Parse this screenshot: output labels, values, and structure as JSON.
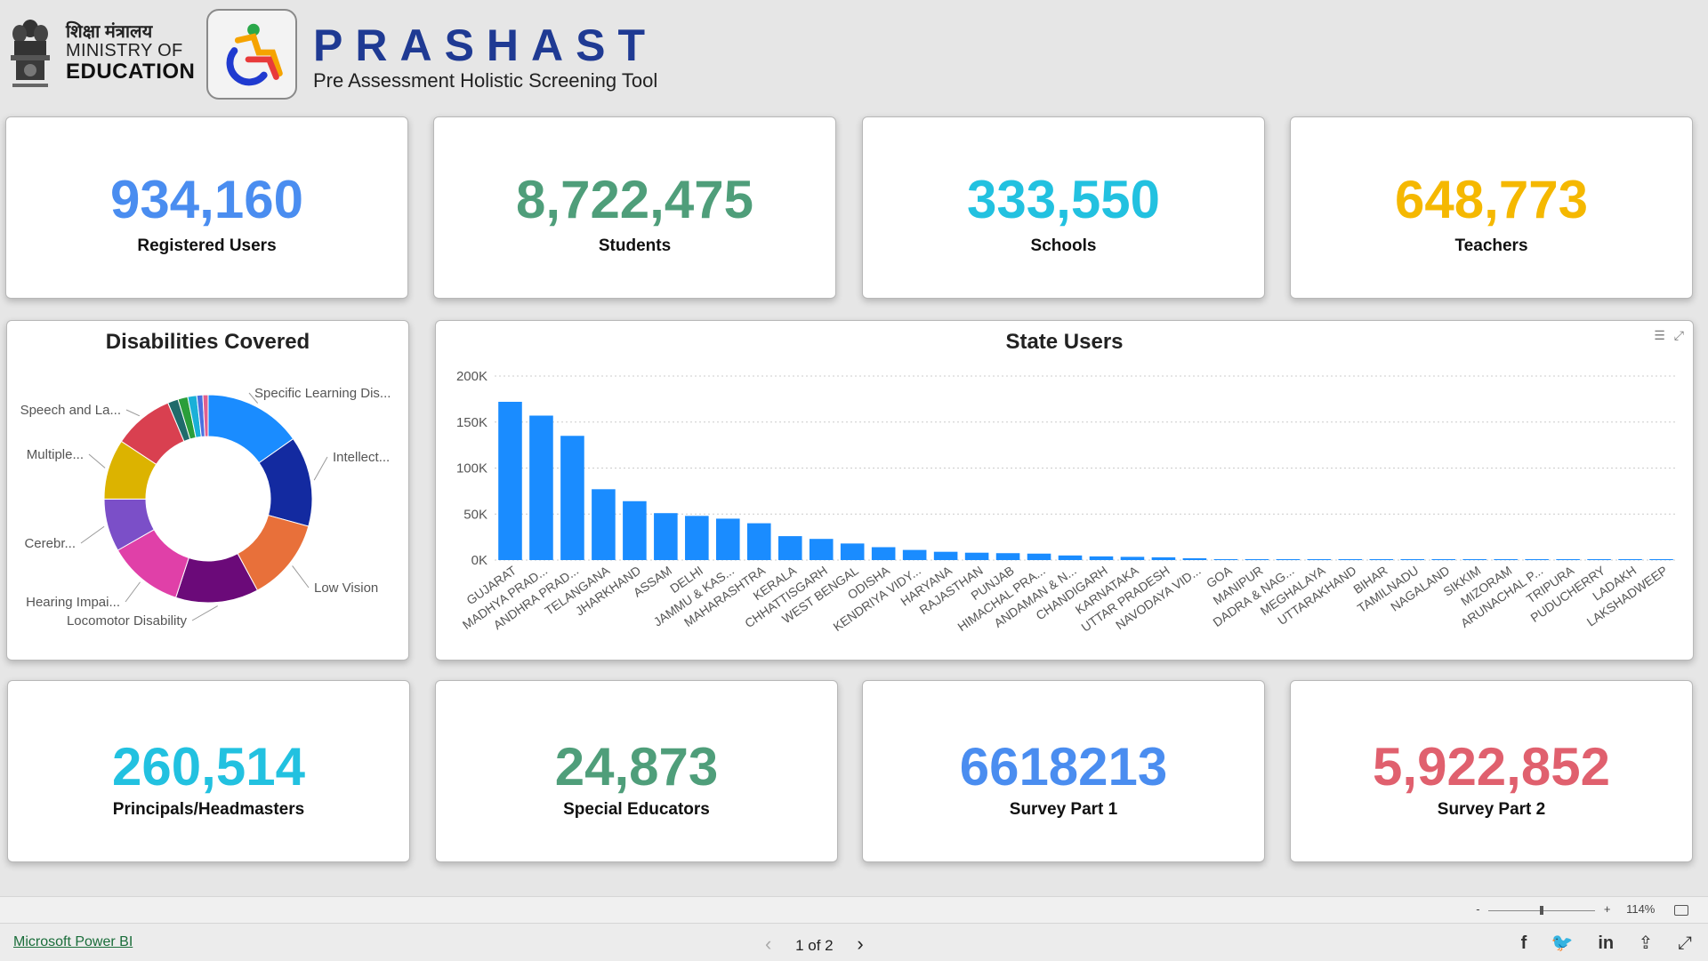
{
  "header": {
    "ministry_hindi": "शिक्षा मंत्रालय",
    "ministry_line1": "MINISTRY OF",
    "ministry_line2": "EDUCATION",
    "app_title": "PRASHAST",
    "app_subtitle": "Pre Assessment Holistic Screening Tool"
  },
  "kpis_top": [
    {
      "value": "934,160",
      "label": "Registered Users",
      "color": "#4a8df0"
    },
    {
      "value": "8,722,475",
      "label": "Students",
      "color": "#4f9e7a"
    },
    {
      "value": "333,550",
      "label": "Schools",
      "color": "#22c1e0"
    },
    {
      "value": "648,773",
      "label": "Teachers",
      "color": "#f5b800"
    }
  ],
  "kpis_bottom": [
    {
      "value": "260,514",
      "label": "Principals/Headmasters",
      "color": "#22c1e0"
    },
    {
      "value": "24,873",
      "label": "Special Educators",
      "color": "#4f9e7a"
    },
    {
      "value": "6618213",
      "label": "Survey Part 1",
      "color": "#4a8df0"
    },
    {
      "value": "5,922,852",
      "label": "Survey Part 2",
      "color": "#e0606e"
    }
  ],
  "donut": {
    "title": "Disabilities Covered",
    "slices": [
      {
        "label": "Specific Learning Dis...",
        "value": 13,
        "color": "#1a8cff"
      },
      {
        "label": "Intellect...",
        "value": 12,
        "color": "#132aa0"
      },
      {
        "label": "Low Vision",
        "value": 11,
        "color": "#e8703a"
      },
      {
        "label": "Locomotor Disability",
        "value": 11,
        "color": "#6b0a79"
      },
      {
        "label": "Hearing Impai...",
        "value": 10,
        "color": "#e040a8"
      },
      {
        "label": "Cerebr...",
        "value": 7,
        "color": "#7b4fc8"
      },
      {
        "label": "Multiple...",
        "value": 8,
        "color": "#dcb300"
      },
      {
        "label": "Speech and La...",
        "value": 8,
        "color": "#d94050"
      },
      {
        "label": "",
        "value": 1.4,
        "color": "#1f6b6b"
      },
      {
        "label": "",
        "value": 1.3,
        "color": "#2a9e3a"
      },
      {
        "label": "",
        "value": 1.2,
        "color": "#1ab0d8"
      },
      {
        "label": "",
        "value": 0.8,
        "color": "#4a70e0"
      },
      {
        "label": "",
        "value": 0.7,
        "color": "#e06090"
      }
    ]
  },
  "chart_data": {
    "type": "bar",
    "title": "State Users",
    "categories": [
      "GUJARAT",
      "MADHYA PRAD...",
      "ANDHRA PRAD...",
      "TELANGANA",
      "JHARKHAND",
      "ASSAM",
      "DELHI",
      "JAMMU & KAS...",
      "MAHARASHTRA",
      "KERALA",
      "CHHATTISGARH",
      "WEST BENGAL",
      "ODISHA",
      "KENDRIYA VIDY...",
      "HARYANA",
      "RAJASTHAN",
      "PUNJAB",
      "HIMACHAL PRA...",
      "ANDAMAN & N...",
      "CHANDIGARH",
      "KARNATAKA",
      "UTTAR PRADESH",
      "NAVODAYA VID...",
      "GOA",
      "MANIPUR",
      "DADRA & NAG...",
      "MEGHALAYA",
      "UTTARAKHAND",
      "BIHAR",
      "TAMILNADU",
      "NAGALAND",
      "SIKKIM",
      "MIZORAM",
      "ARUNACHAL P...",
      "TRIPURA",
      "PUDUCHERRY",
      "LADAKH",
      "LAKSHADWEEP"
    ],
    "values": [
      172000,
      157000,
      135000,
      77000,
      64000,
      51000,
      48000,
      45000,
      40000,
      26000,
      23000,
      18000,
      14000,
      11000,
      9000,
      8000,
      7500,
      7000,
      5000,
      4000,
      3500,
      3000,
      2000,
      800,
      700,
      600,
      500,
      500,
      400,
      400,
      300,
      300,
      300,
      300,
      300,
      200,
      200,
      100
    ],
    "yticks": [
      "200K",
      "150K",
      "100K",
      "50K",
      "0K"
    ],
    "ylim": [
      0,
      200000
    ],
    "bar_color": "#1a8cff",
    "grid": true
  },
  "statusbar": {
    "zoom_minus": "-",
    "zoom_plus": "+",
    "zoom_level": "114%",
    "zoom_fraction": 0.5
  },
  "footer": {
    "link": "Microsoft Power BI",
    "page": "1 of 2",
    "prev": "‹",
    "next": "›"
  }
}
